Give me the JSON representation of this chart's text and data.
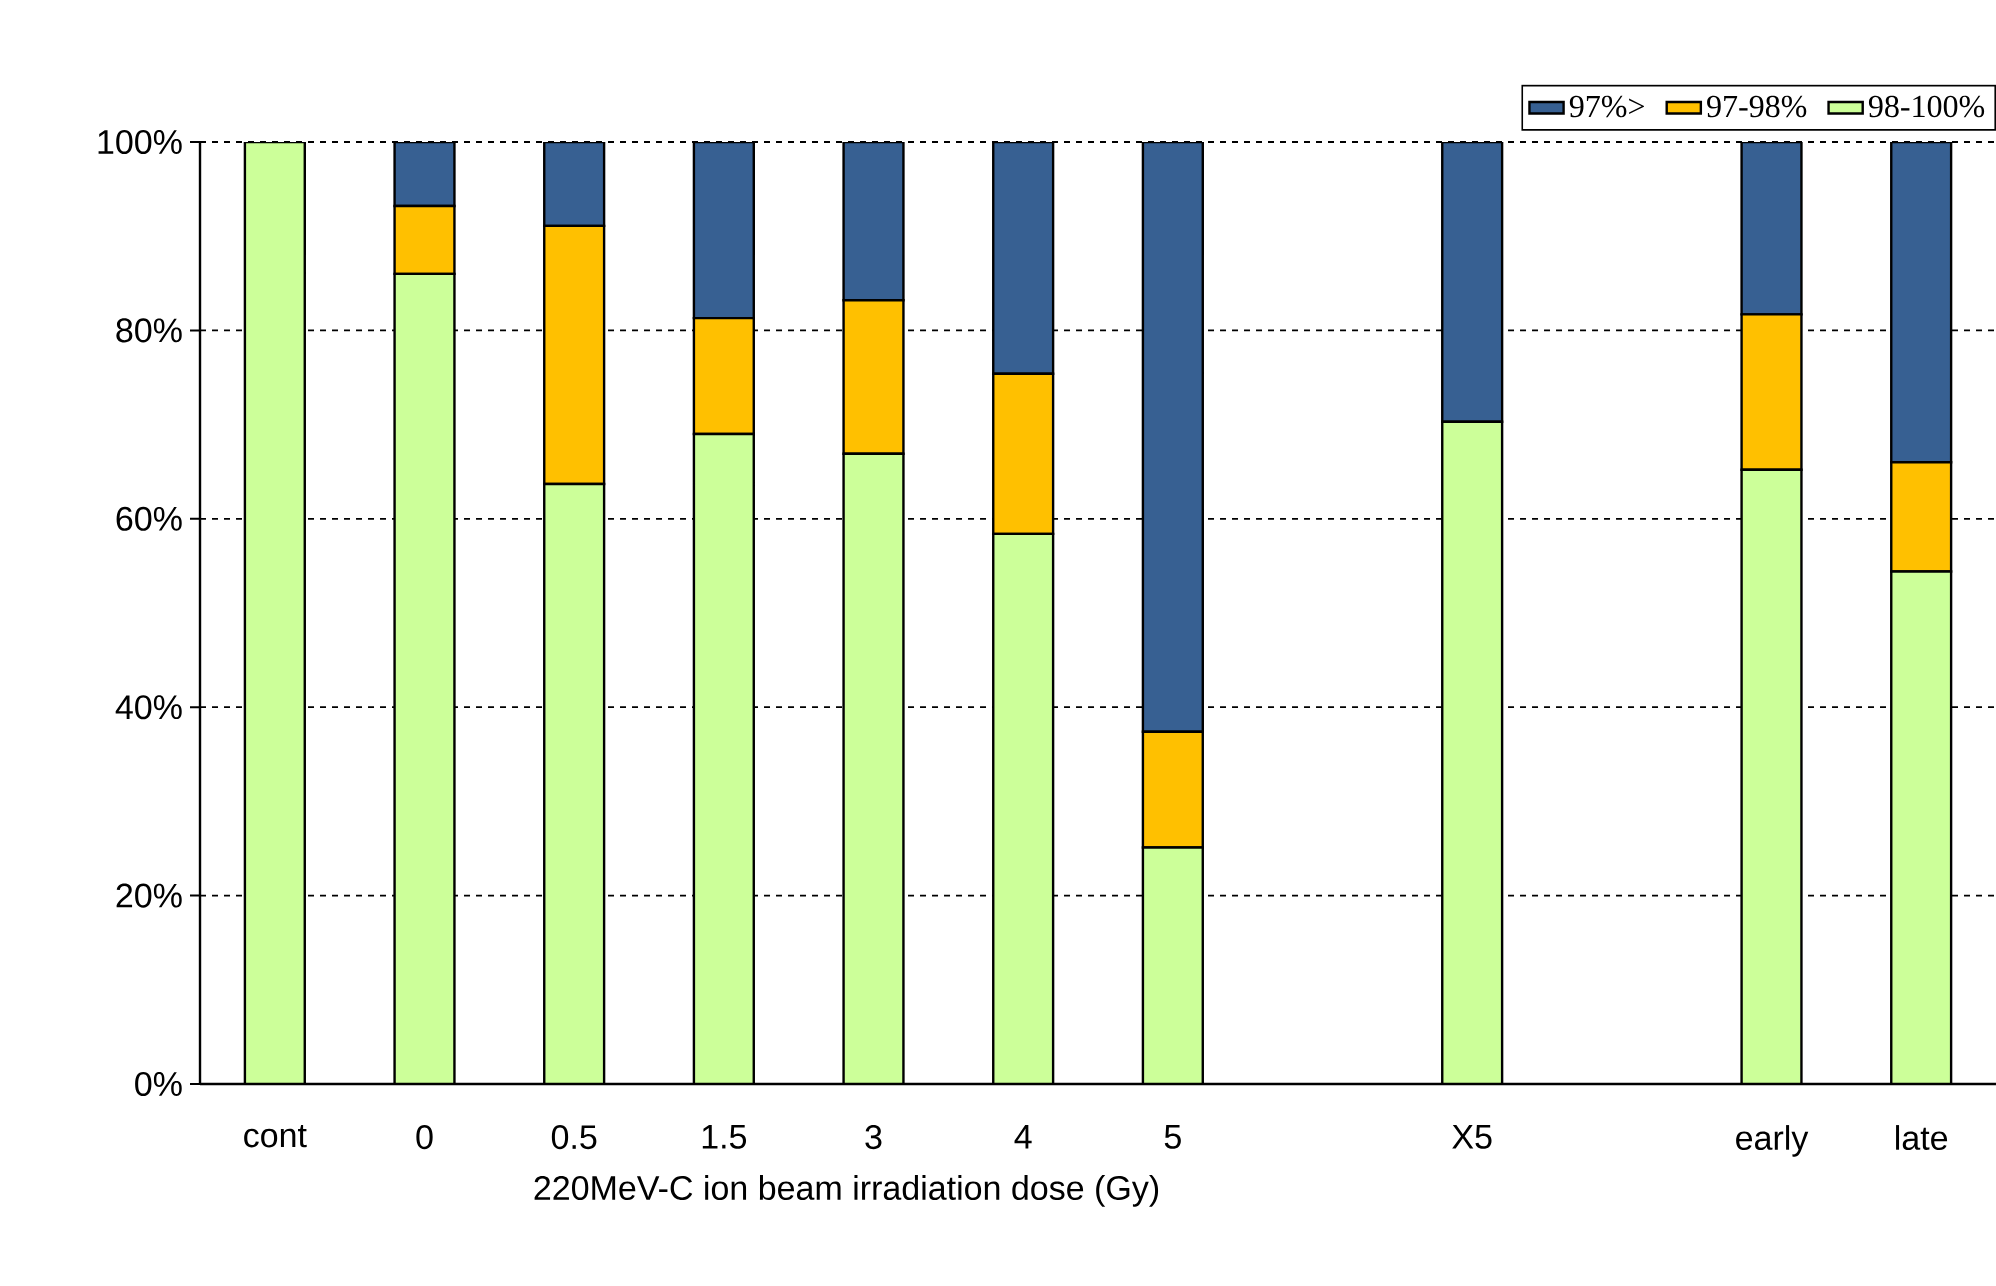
{
  "chart_data": {
    "type": "bar",
    "stacked": true,
    "xlabel": "220MeV-C ion beam irradiation dose (Gy)",
    "categories": [
      "cont",
      "0",
      "0.5",
      "1.5",
      "3",
      "4",
      "5",
      null,
      "X5",
      null,
      "early",
      "late"
    ],
    "series": [
      {
        "name": "98-100%",
        "color": "#ccff99",
        "values": [
          100,
          86.0,
          63.7,
          69.0,
          66.9,
          58.4,
          25.1,
          null,
          70.3,
          null,
          65.2,
          54.4
        ]
      },
      {
        "name": "97-98%",
        "color": "#ffc000",
        "values": [
          0,
          7.2,
          27.4,
          12.3,
          16.3,
          17.0,
          12.3,
          null,
          0,
          null,
          16.5,
          11.6
        ]
      },
      {
        "name": "97%>",
        "color": "#376092",
        "values": [
          0,
          6.8,
          8.9,
          18.7,
          16.8,
          24.6,
          62.6,
          null,
          29.7,
          null,
          18.3,
          34.0
        ]
      }
    ],
    "ylim": [
      0,
      100
    ],
    "yticks": [
      {
        "value": 0,
        "label": "0%"
      },
      {
        "value": 20,
        "label": "20%"
      },
      {
        "value": 40,
        "label": "40%"
      },
      {
        "value": 60,
        "label": "60%"
      },
      {
        "value": 80,
        "label": "80%"
      },
      {
        "value": 100,
        "label": "100%"
      }
    ],
    "grid": "y",
    "legend": "top right"
  }
}
